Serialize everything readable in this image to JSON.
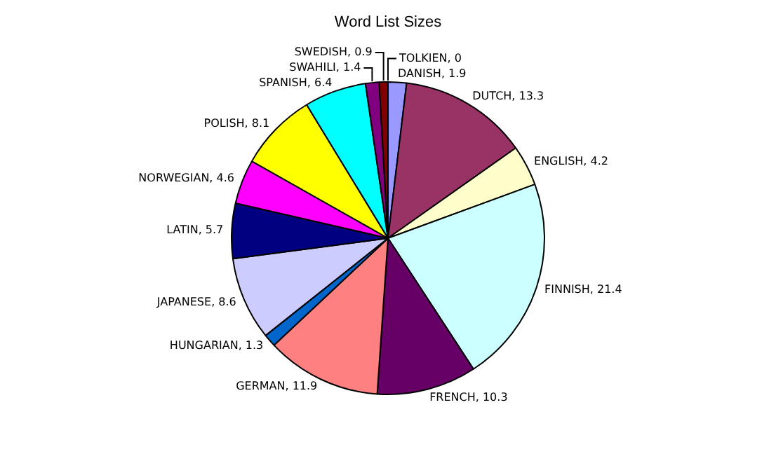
{
  "chart_data": {
    "type": "pie",
    "title": "Word List Sizes",
    "categories": [
      "DANISH",
      "DUTCH",
      "ENGLISH",
      "FINNISH",
      "FRENCH",
      "GERMAN",
      "HUNGARIAN",
      "JAPANESE",
      "LATIN",
      "NORWEGIAN",
      "POLISH",
      "SPANISH",
      "SWAHILI",
      "SWEDISH",
      "TOLKIEN"
    ],
    "values": [
      1.9,
      13.3,
      4.2,
      21.4,
      10.3,
      11.9,
      1.3,
      8.6,
      5.7,
      4.6,
      8.1,
      6.4,
      1.4,
      0.9,
      0
    ],
    "value_labels": [
      ", 1.9",
      ", 13.3",
      ", 4.2",
      ", 21.4",
      ", 10.3",
      ", 11.9",
      ", 1.3",
      ", 8.6",
      ", 5.7",
      ", 4.6",
      ", 8.1",
      ", 6.4",
      ", 1.4",
      ", 0.9",
      ", 0"
    ],
    "colors": [
      "#9999ff",
      "#993366",
      "#ffffcc",
      "#ccffff",
      "#660066",
      "#ff8080",
      "#0066cc",
      "#ccccff",
      "#000080",
      "#ff00ff",
      "#ffff00",
      "#00ffff",
      "#800080",
      "#800000",
      "#000000"
    ]
  }
}
